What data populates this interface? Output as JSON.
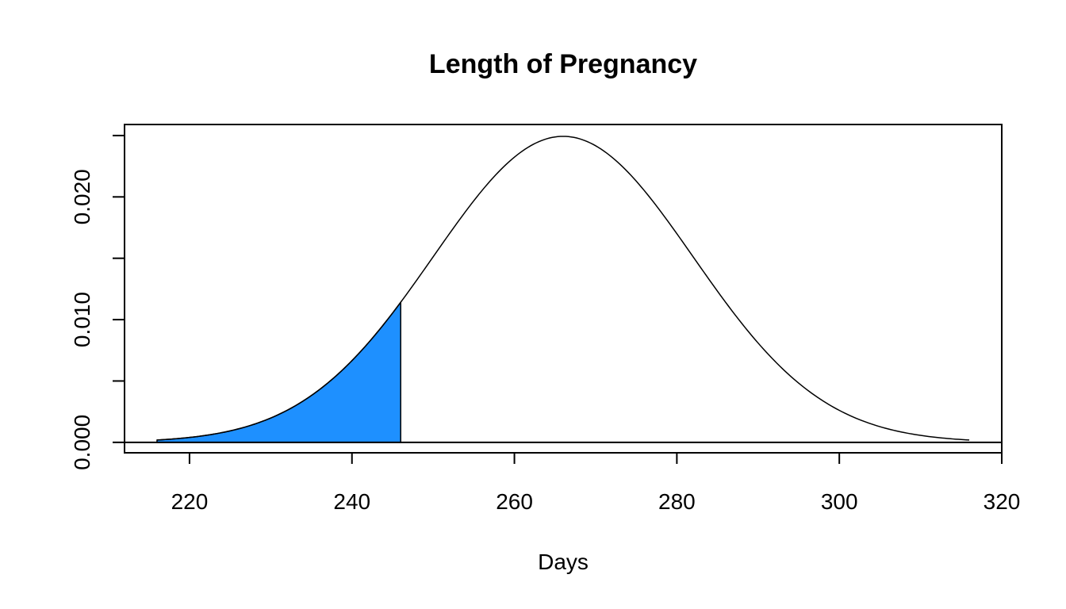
{
  "chart_data": {
    "type": "area",
    "title": "Length of Pregnancy",
    "xlabel": "Days",
    "ylabel": "",
    "xlim": [
      212,
      320
    ],
    "ylim": [
      -0.00085,
      0.0259
    ],
    "x_ticks": [
      220,
      240,
      260,
      280,
      300,
      320
    ],
    "x_tick_labels": [
      "220",
      "240",
      "260",
      "280",
      "300",
      "320"
    ],
    "y_ticks": [
      0,
      0.005,
      0.01,
      0.015,
      0.02,
      0.025
    ],
    "y_tick_labels": [
      "0.000",
      "",
      "0.010",
      "",
      "0.020",
      ""
    ],
    "grid": false,
    "legend": "none",
    "curve": {
      "distribution": "normal",
      "mean": 266,
      "sd": 16,
      "x_range": [
        216,
        316
      ]
    },
    "shaded_region": {
      "x_from": 216,
      "x_to": 246,
      "color": "#1E90FF"
    },
    "baseline_y": 0,
    "line_color": "#000000"
  }
}
